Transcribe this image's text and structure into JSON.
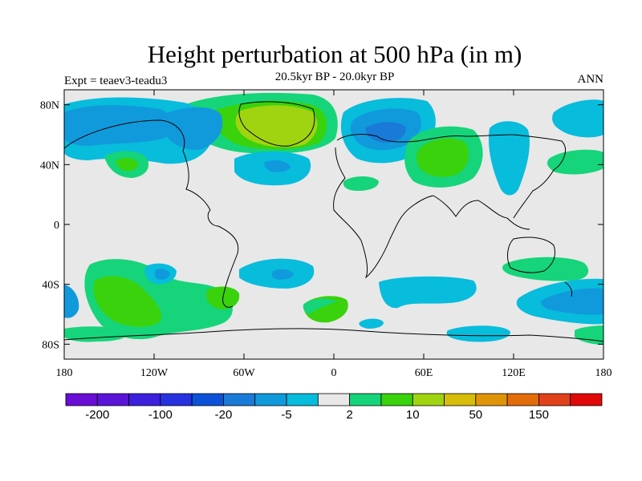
{
  "title": "Height perturbation at 500 hPa (in m)",
  "subtitle": "20.5kyr BP - 20.0kyr BP",
  "left_string": "Expt = teaev3-teadu3",
  "right_string": "ANN",
  "axes": {
    "lat_ticks": [
      "80N",
      "40N",
      "0",
      "40S",
      "80S"
    ],
    "lon_ticks": [
      "180",
      "120W",
      "60W",
      "0",
      "60E",
      "120E",
      "180"
    ]
  },
  "colorbar": {
    "colors": [
      "#6a0dd6",
      "#5a14d8",
      "#3c20de",
      "#2632e0",
      "#0c52d8",
      "#1a7ad8",
      "#109adc",
      "#08bcdc",
      "#e8e8e8",
      "#16d47a",
      "#3ad20c",
      "#a0d410",
      "#d8bc0a",
      "#e09408",
      "#e26c0a",
      "#e0401a",
      "#e00808"
    ],
    "labels": [
      "-200",
      "-100",
      "-20",
      "-5",
      "2",
      "10",
      "50",
      "150"
    ]
  },
  "colors": {
    "background_field": "#e8e8e8",
    "neg_weak": "#08bcdc",
    "neg_mid": "#109adc",
    "neg_strong": "#1a7ad8",
    "pos_weak": "#16d47a",
    "pos_mid": "#3ad20c",
    "pos_strong": "#a0d410"
  }
}
